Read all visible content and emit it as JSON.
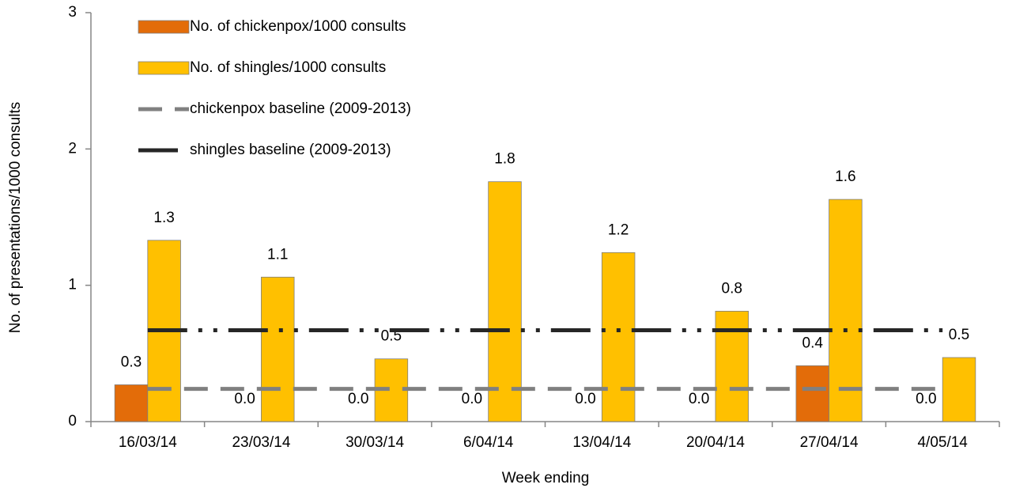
{
  "chart_data": {
    "type": "bar",
    "x_label": "Week ending",
    "y_label": "No. of presentations/1000 consults",
    "categories": [
      "16/03/14",
      "23/03/14",
      "30/03/14",
      "6/04/14",
      "13/04/14",
      "20/04/14",
      "27/04/14",
      "4/05/14"
    ],
    "series": [
      {
        "name": "No. of chickenpox/1000 consults",
        "type": "bar",
        "color": "#e36c09",
        "values": [
          0.27,
          0,
          0,
          0,
          0,
          0,
          0.41,
          0
        ],
        "value_labels": [
          "0.3",
          "0.0",
          "0.0",
          "0.0",
          "0.0",
          "0.0",
          "0.4",
          "0.0"
        ]
      },
      {
        "name": "No. of shingles/1000 consults",
        "type": "bar",
        "color": "#ffc000",
        "values": [
          1.33,
          1.06,
          0.46,
          1.76,
          1.24,
          0.81,
          1.63,
          0.47
        ],
        "value_labels": [
          "1.3",
          "1.1",
          "0.5",
          "1.8",
          "1.2",
          "0.8",
          "1.6",
          "0.5"
        ]
      },
      {
        "name": "chickenpox baseline (2009-2013)",
        "type": "line",
        "color": "#808080",
        "dash": "dashed",
        "values": [
          0.24,
          0.24,
          0.24,
          0.24,
          0.24,
          0.24,
          0.24,
          0.24
        ]
      },
      {
        "name": "shingles baseline (2009-2013)",
        "type": "line",
        "color": "#262626",
        "dash": "dash-dot-dot",
        "values": [
          0.67,
          0.67,
          0.67,
          0.67,
          0.67,
          0.67,
          0.67,
          0.67
        ]
      }
    ],
    "ylim": [
      0,
      3
    ],
    "yticks": [
      0,
      1,
      2,
      3
    ],
    "grid": false,
    "legend": "top-left"
  }
}
